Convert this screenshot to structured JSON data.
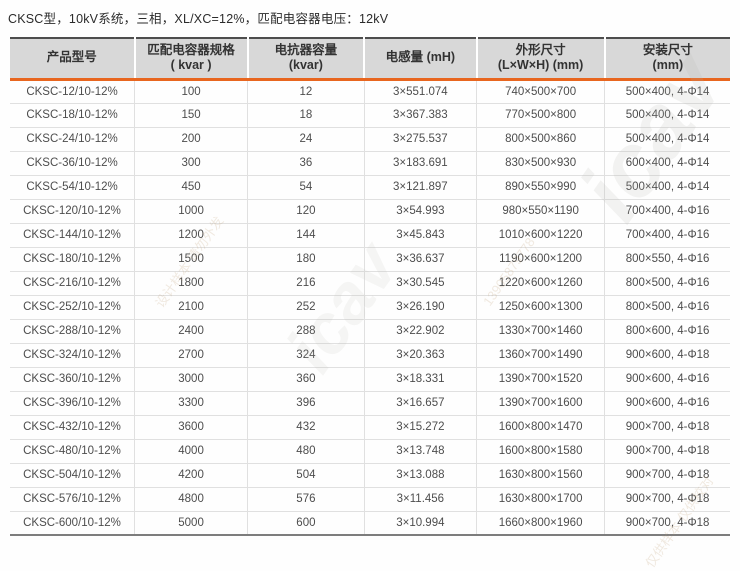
{
  "page": {
    "title": "CKSC型，10kV系统，三相，XL/XC=12%，匹配电容器电压：12kV"
  },
  "colors": {
    "accent_orange": "#e8661f",
    "header_bg": "#d8d8d8",
    "table_top_border": "#4d4d4d",
    "table_bottom_border": "#7d7d7d",
    "row_divider": "#e0e0e0",
    "body_text": "#4d4d4d"
  },
  "watermarks": [
    {
      "text": "icav"
    },
    {
      "text": "icav"
    },
    {
      "text": "设计样本 请勿外发"
    },
    {
      "text": "13905879778"
    },
    {
      "text": "仅供样本 仅供校对"
    }
  ],
  "table": {
    "columns": [
      {
        "line1": "产品型号",
        "line2": ""
      },
      {
        "line1": "匹配电容器规格",
        "line2": "( kvar )"
      },
      {
        "line1": "电抗器容量",
        "line2": "(kvar)"
      },
      {
        "line1": "电感量 (mH)",
        "line2": ""
      },
      {
        "line1": "外形尺寸",
        "line2": "(L×W×H) (mm)"
      },
      {
        "line1": "安装尺寸",
        "line2": "(mm)"
      }
    ],
    "rows": [
      [
        "CKSC-12/10-12%",
        "100",
        "12",
        "3×551.074",
        "740×500×700",
        "500×400, 4-Φ14"
      ],
      [
        "CKSC-18/10-12%",
        "150",
        "18",
        "3×367.383",
        "770×500×800",
        "500×400, 4-Φ14"
      ],
      [
        "CKSC-24/10-12%",
        "200",
        "24",
        "3×275.537",
        "800×500×860",
        "500×400, 4-Φ14"
      ],
      [
        "CKSC-36/10-12%",
        "300",
        "36",
        "3×183.691",
        "830×500×930",
        "600×400, 4-Φ14"
      ],
      [
        "CKSC-54/10-12%",
        "450",
        "54",
        "3×121.897",
        "890×550×990",
        "500×400, 4-Φ14"
      ],
      [
        "CKSC-120/10-12%",
        "1000",
        "120",
        "3×54.993",
        "980×550×1190",
        "700×400, 4-Φ16"
      ],
      [
        "CKSC-144/10-12%",
        "1200",
        "144",
        "3×45.843",
        "1010×600×1220",
        "700×400, 4-Φ16"
      ],
      [
        "CKSC-180/10-12%",
        "1500",
        "180",
        "3×36.637",
        "1190×600×1200",
        "800×550, 4-Φ16"
      ],
      [
        "CKSC-216/10-12%",
        "1800",
        "216",
        "3×30.545",
        "1220×600×1260",
        "800×500, 4-Φ16"
      ],
      [
        "CKSC-252/10-12%",
        "2100",
        "252",
        "3×26.190",
        "1250×600×1300",
        "800×500, 4-Φ16"
      ],
      [
        "CKSC-288/10-12%",
        "2400",
        "288",
        "3×22.902",
        "1330×700×1460",
        "800×600, 4-Φ16"
      ],
      [
        "CKSC-324/10-12%",
        "2700",
        "324",
        "3×20.363",
        "1360×700×1490",
        "900×600, 4-Φ18"
      ],
      [
        "CKSC-360/10-12%",
        "3000",
        "360",
        "3×18.331",
        "1390×700×1520",
        "900×600, 4-Φ16"
      ],
      [
        "CKSC-396/10-12%",
        "3300",
        "396",
        "3×16.657",
        "1390×700×1600",
        "900×600, 4-Φ16"
      ],
      [
        "CKSC-432/10-12%",
        "3600",
        "432",
        "3×15.272",
        "1600×800×1470",
        "900×700, 4-Φ18"
      ],
      [
        "CKSC-480/10-12%",
        "4000",
        "480",
        "3×13.748",
        "1600×800×1580",
        "900×700, 4-Φ18"
      ],
      [
        "CKSC-504/10-12%",
        "4200",
        "504",
        "3×13.088",
        "1630×800×1560",
        "900×700, 4-Φ18"
      ],
      [
        "CKSC-576/10-12%",
        "4800",
        "576",
        "3×11.456",
        "1630×800×1700",
        "900×700, 4-Φ18"
      ],
      [
        "CKSC-600/10-12%",
        "5000",
        "600",
        "3×10.994",
        "1660×800×1960",
        "900×700, 4-Φ18"
      ]
    ]
  }
}
